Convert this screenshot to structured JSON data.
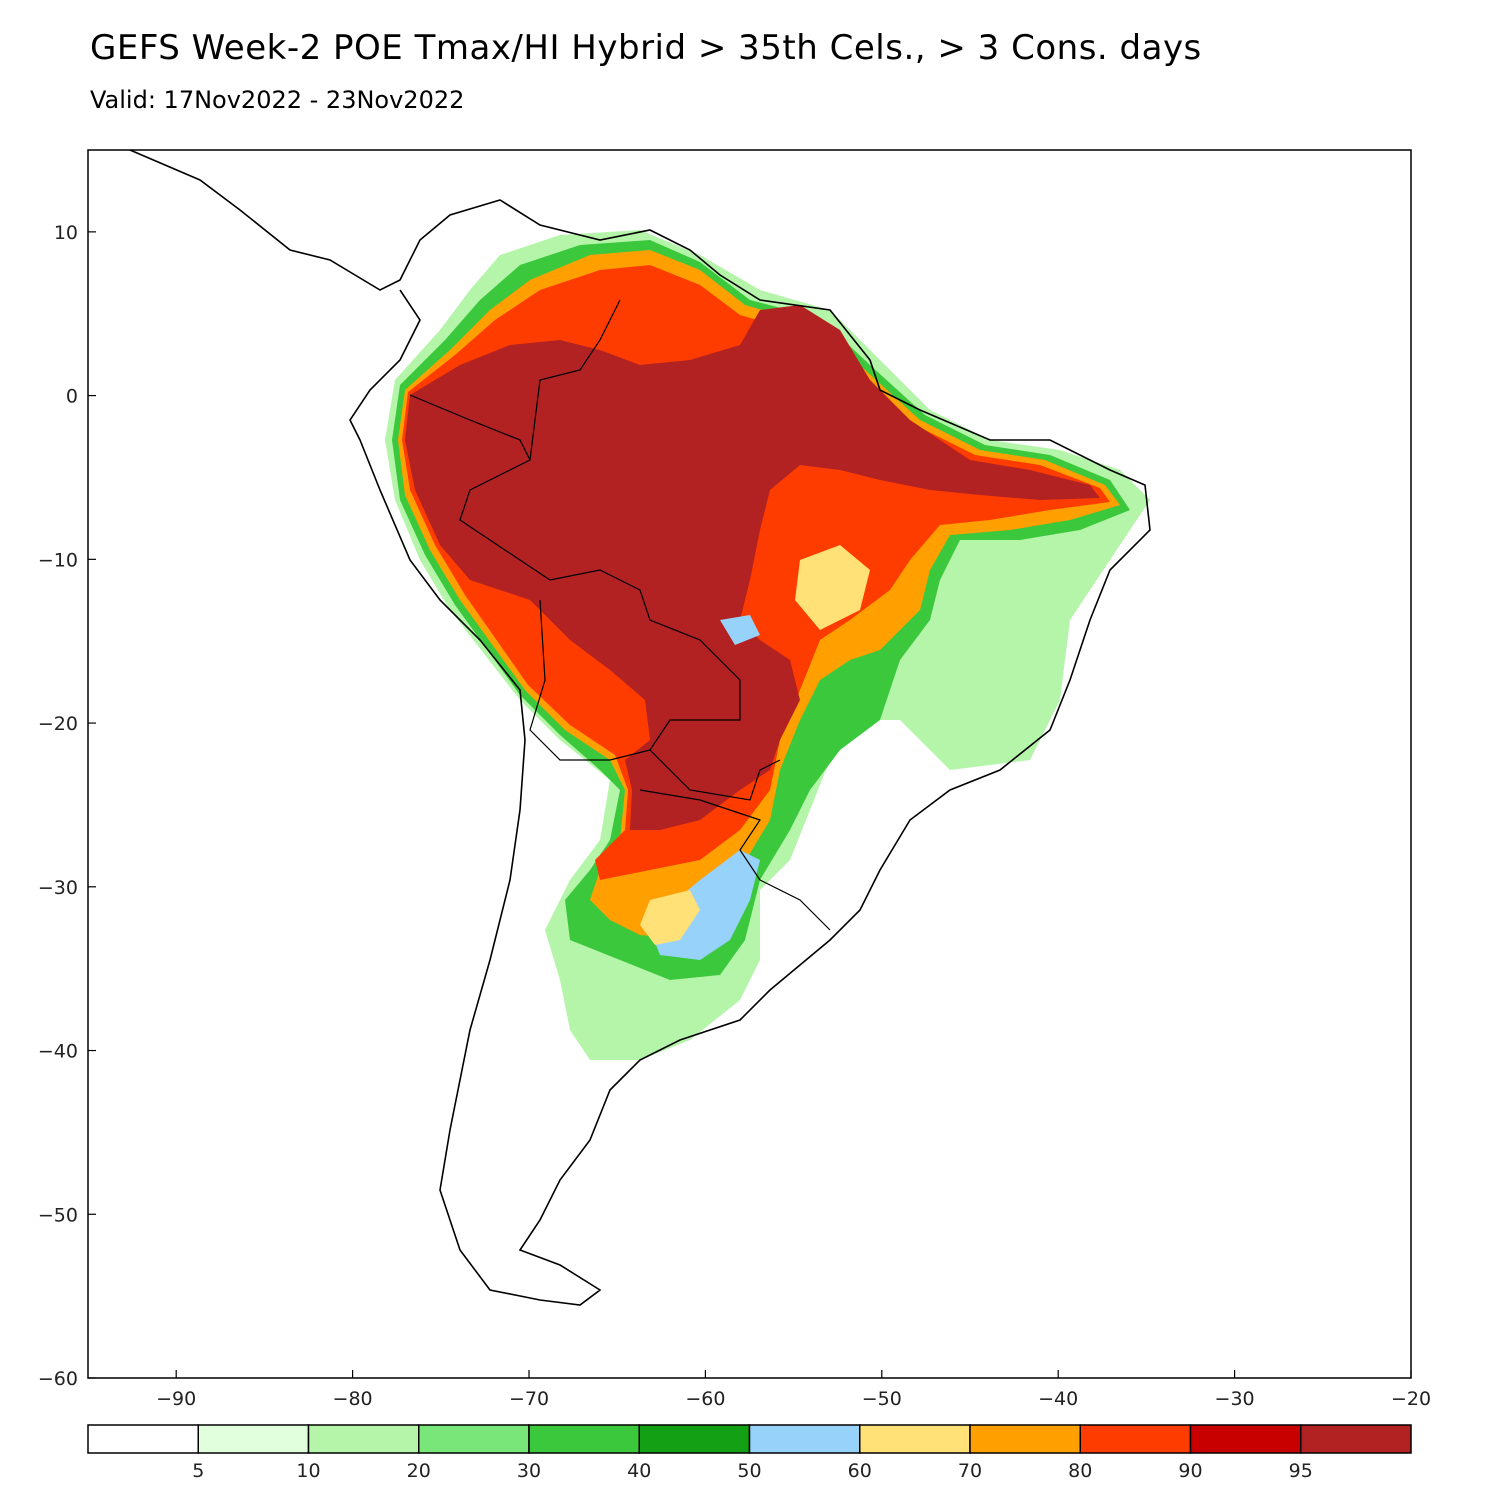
{
  "title": "GEFS Week-2 POE Tmax/HI Hybrid > 35th Cels., > 3 Cons. days",
  "subtitle": "Valid: 17Nov2022 - 23Nov2022",
  "map": {
    "region": "South America",
    "lon_range": [
      -95,
      -20
    ],
    "lat_range": [
      -60,
      15
    ],
    "x_ticks": [
      "-90",
      "-80",
      "-70",
      "-60",
      "-50",
      "-40",
      "-30",
      "-20"
    ],
    "y_ticks": [
      "10",
      "0",
      "-10",
      "-20",
      "-30",
      "-40",
      "-50",
      "-60"
    ]
  },
  "colorbar": {
    "colors": [
      "#ffffff",
      "#e1ffdc",
      "#b4f5aa",
      "#78e678",
      "#3cc83c",
      "#14a014",
      "#96d2fa",
      "#ffe178",
      "#ffa000",
      "#ff3c00",
      "#c80000",
      "#b22222"
    ],
    "labels": [
      "5",
      "10",
      "20",
      "30",
      "40",
      "50",
      "60",
      "70",
      "80",
      "90",
      "95"
    ]
  }
}
